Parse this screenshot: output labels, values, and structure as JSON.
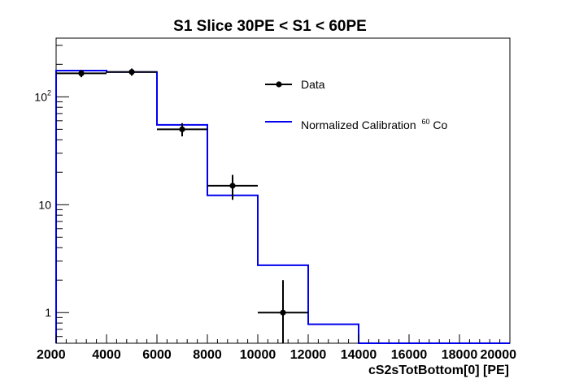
{
  "chart_data": {
    "type": "line",
    "title": "S1 Slice 30PE < S1 < 60PE",
    "xlabel": "cS2sTotBottom[0]  [PE]",
    "ylabel": "",
    "xlim": [
      2000,
      20000
    ],
    "ylim": [
      0.52,
      350
    ],
    "yscale": "log",
    "grid": false,
    "legend_position": "top-right",
    "x_tick_labels": [
      "2000",
      "4000",
      "6000",
      "8000",
      "10000",
      "12000",
      "14000",
      "16000",
      "18000",
      "20000"
    ],
    "y_tick_labels": [
      {
        "value": 1,
        "base": "1",
        "exp": ""
      },
      {
        "value": 10,
        "base": "10",
        "exp": ""
      },
      {
        "value": 100,
        "base": "10",
        "exp": "2"
      }
    ],
    "series": [
      {
        "name": "Data",
        "kind": "points_with_errors",
        "color": "#000000",
        "points": [
          {
            "x": 3000,
            "xerr": 1000,
            "y": 165,
            "yerr_low": 13,
            "yerr_high": 13
          },
          {
            "x": 5000,
            "xerr": 1000,
            "y": 170,
            "yerr_low": 13,
            "yerr_high": 13
          },
          {
            "x": 7000,
            "xerr": 1000,
            "y": 50,
            "yerr_low": 7,
            "yerr_high": 7
          },
          {
            "x": 9000,
            "xerr": 1000,
            "y": 15,
            "yerr_low": 3.9,
            "yerr_high": 3.9
          },
          {
            "x": 11000,
            "xerr": 1000,
            "y": 1,
            "yerr_low": 1,
            "yerr_high": 1
          }
        ]
      },
      {
        "name": "Normalized Calibration",
        "name_superscript": "60",
        "name_suffix": "Co",
        "kind": "step_histogram",
        "color": "#0000ee",
        "bin_edges": [
          2000,
          4000,
          6000,
          8000,
          10000,
          12000,
          14000,
          16000,
          18000,
          20000
        ],
        "values": [
          175,
          170,
          55,
          12.2,
          2.75,
          0.78,
          0.5,
          0.5,
          0.5
        ]
      }
    ]
  }
}
